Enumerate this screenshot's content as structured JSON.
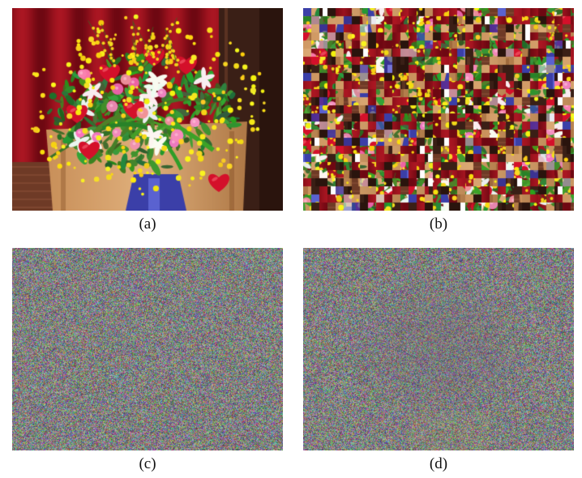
{
  "figure": {
    "panels": [
      {
        "id": "a",
        "caption": "(a)",
        "content": "original-flower-bouquet-photo"
      },
      {
        "id": "b",
        "caption": "(b)",
        "content": "block-scrambled-photo"
      },
      {
        "id": "c",
        "caption": "(c)",
        "content": "noise-like-encrypted-image"
      },
      {
        "id": "d",
        "caption": "(d)",
        "content": "noise-with-faint-structure"
      }
    ]
  }
}
